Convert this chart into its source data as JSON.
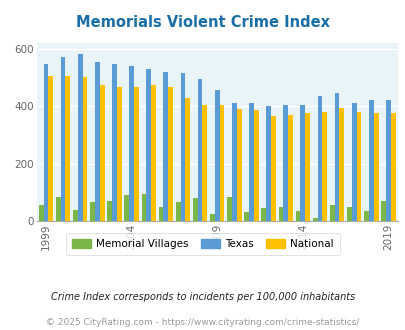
{
  "title": "Memorials Violent Crime Index",
  "years": [
    1999,
    2000,
    2001,
    2002,
    2003,
    2004,
    2005,
    2006,
    2007,
    2008,
    2009,
    2010,
    2011,
    2012,
    2013,
    2014,
    2015,
    2016,
    2017,
    2018,
    2019,
    2020
  ],
  "mem_data": [
    55,
    85,
    40,
    65,
    70,
    90,
    95,
    50,
    65,
    80,
    25,
    85,
    30,
    45,
    50,
    35,
    10,
    55,
    50,
    35,
    70,
    0
  ],
  "tex_data": [
    545,
    570,
    580,
    555,
    545,
    540,
    530,
    520,
    515,
    495,
    455,
    410,
    410,
    400,
    405,
    405,
    435,
    445,
    410,
    420,
    420,
    0
  ],
  "nat_data": [
    505,
    505,
    500,
    475,
    465,
    465,
    475,
    465,
    430,
    405,
    405,
    390,
    385,
    365,
    370,
    375,
    380,
    395,
    380,
    375,
    375,
    0
  ],
  "color_memorial": "#7ab648",
  "color_texas": "#5b9bd5",
  "color_national": "#ffc000",
  "bg_color": "#e8f4f8",
  "footnote1": "Crime Index corresponds to incidents per 100,000 inhabitants",
  "footnote2": "© 2025 CityRating.com - https://www.cityrating.com/crime-statistics/",
  "ylim": [
    0,
    620
  ],
  "yticks": [
    0,
    200,
    400,
    600
  ],
  "tick_years": [
    1999,
    2004,
    2009,
    2014,
    2019
  ],
  "legend_labels": [
    "Memorial Villages",
    "Texas",
    "National"
  ]
}
